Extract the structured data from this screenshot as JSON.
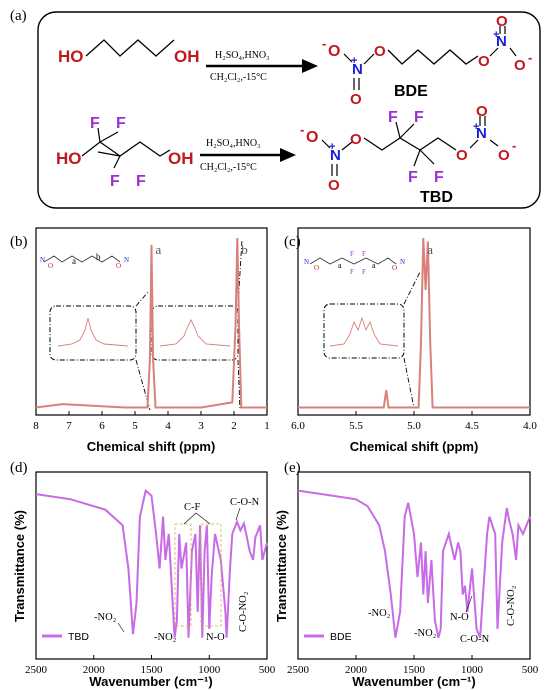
{
  "figure": {
    "panel_labels": [
      "(a)",
      "(b)",
      "(c)",
      "(d)",
      "(e)"
    ],
    "colors": {
      "red": "#c0191f",
      "purple": "#9b30d9",
      "blue": "#1a1fd6",
      "trace_nmr": "#d9807a",
      "trace_ir": "#c76be6"
    }
  },
  "scheme": {
    "reaction1": {
      "reactant_ho": "HO",
      "reactant_oh": "OH",
      "conditions_top": "H₂SO₄,HNO₃",
      "conditions_bottom": "CH₂Cl₂,-15°C",
      "product_name": "BDE"
    },
    "reaction2": {
      "reactant_ho": "HO",
      "reactant_oh": "OH",
      "fluorine": "F",
      "conditions_top": "H₂SO₄,HNO₃",
      "conditions_bottom": "CH₂Cl₂,-15°C",
      "product_name": "TBD"
    },
    "atoms": {
      "oxygen": "O",
      "nitrogen": "N",
      "minus": "-",
      "plus": "+"
    }
  },
  "chart_data": [
    {
      "type": "line",
      "panel": "(b)",
      "xlabel": "Chemical shift (ppm)",
      "ylabel": "",
      "xlim": [
        8,
        1
      ],
      "x_reversed": true,
      "xticks": [
        8,
        7,
        6,
        5,
        4,
        3,
        2,
        1
      ],
      "peak_labels": [
        "a",
        "b"
      ],
      "x": [
        8.0,
        7.2,
        5.3,
        4.62,
        4.55,
        4.5,
        4.45,
        4.38,
        3.0,
        2.05,
        1.95,
        1.9,
        1.85,
        1.78,
        1.0
      ],
      "y": [
        0.02,
        0.04,
        0.02,
        0.02,
        0.3,
        0.96,
        0.3,
        0.02,
        0.02,
        0.05,
        0.5,
        1.0,
        0.5,
        0.02,
        0.02
      ]
    },
    {
      "type": "line",
      "panel": "(c)",
      "xlabel": "Chemical shift (ppm)",
      "ylabel": "",
      "xlim": [
        6.0,
        4.0
      ],
      "x_reversed": true,
      "xticks": [
        6.0,
        5.5,
        5.0,
        4.5,
        4.0
      ],
      "peak_labels": [
        "a"
      ],
      "x": [
        6.0,
        5.26,
        5.24,
        5.22,
        4.96,
        4.94,
        4.92,
        4.9,
        4.88,
        4.86,
        4.84,
        4.0
      ],
      "y": [
        0.02,
        0.02,
        0.12,
        0.02,
        0.02,
        0.4,
        1.0,
        0.7,
        0.98,
        0.4,
        0.02,
        0.02
      ]
    },
    {
      "type": "line",
      "panel": "(d)",
      "xlabel": "Wavenumber (cm⁻¹)",
      "ylabel": "Transmittance (%)",
      "xlim": [
        2500,
        500
      ],
      "x_reversed": true,
      "xticks": [
        2500,
        2000,
        1500,
        1000,
        500
      ],
      "series": [
        {
          "name": "TBD",
          "x": [
            2500,
            2200,
            1900,
            1750,
            1700,
            1660,
            1630,
            1600,
            1550,
            1500,
            1460,
            1430,
            1400,
            1380,
            1350,
            1300,
            1280,
            1260,
            1240,
            1200,
            1180,
            1150,
            1120,
            1100,
            1080,
            1060,
            1040,
            1020,
            1000,
            980,
            950,
            900,
            860,
            850,
            820,
            800,
            760,
            730,
            700,
            680,
            650,
            620,
            600,
            560,
            540,
            500
          ],
          "y": [
            93,
            90,
            84,
            75,
            50,
            12,
            30,
            80,
            95,
            92,
            70,
            50,
            80,
            55,
            70,
            10,
            20,
            70,
            50,
            65,
            10,
            60,
            70,
            25,
            75,
            10,
            60,
            75,
            15,
            45,
            70,
            55,
            25,
            10,
            50,
            70,
            77,
            72,
            76,
            70,
            60,
            55,
            68,
            75,
            55,
            65
          ]
        }
      ],
      "annotations": [
        "-NO₂",
        "-NO₂",
        "C-F",
        "N-O",
        "C-O-N",
        "C-O-NO₂"
      ]
    },
    {
      "type": "line",
      "panel": "(e)",
      "xlabel": "Wavenumber (cm⁻¹)",
      "ylabel": "Transmittance (%)",
      "xlim": [
        2500,
        500
      ],
      "x_reversed": true,
      "xticks": [
        2500,
        2000,
        1500,
        1000,
        500
      ],
      "series": [
        {
          "name": "BDE",
          "x": [
            2500,
            2200,
            2000,
            1900,
            1800,
            1750,
            1700,
            1660,
            1620,
            1580,
            1550,
            1500,
            1470,
            1440,
            1420,
            1400,
            1380,
            1350,
            1320,
            1290,
            1270,
            1250,
            1200,
            1150,
            1120,
            1100,
            1080,
            1060,
            1040,
            1000,
            960,
            930,
            900,
            870,
            850,
            800,
            780,
            760,
            740,
            700,
            680,
            650,
            620,
            600,
            560,
            500
          ],
          "y": [
            95,
            92,
            90,
            86,
            75,
            60,
            35,
            10,
            25,
            80,
            88,
            70,
            45,
            65,
            35,
            60,
            30,
            55,
            20,
            10,
            15,
            60,
            70,
            55,
            65,
            60,
            35,
            40,
            25,
            50,
            15,
            10,
            40,
            70,
            80,
            70,
            15,
            40,
            65,
            85,
            78,
            70,
            55,
            75,
            70,
            80
          ]
        }
      ],
      "annotations": [
        "-NO₂",
        "-NO₂",
        "N-O",
        "C-O-N",
        "C-O-NO₂"
      ]
    }
  ]
}
